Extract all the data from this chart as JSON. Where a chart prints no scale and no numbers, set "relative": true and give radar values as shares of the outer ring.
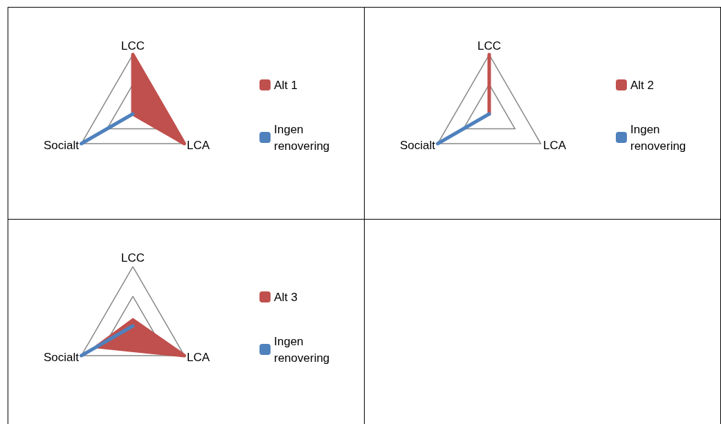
{
  "chart_data": [
    {
      "type": "radar",
      "relative": true,
      "grid": true,
      "legend": "right",
      "categories": [
        "LCC",
        "LCA",
        "Socialt"
      ],
      "series": [
        {
          "name": "Alt 1",
          "color": "#c0504d",
          "values": [
            1,
            1,
            0
          ]
        },
        {
          "name": "Ingen renovering",
          "color": "#4f81bd",
          "values": [
            0,
            0,
            1
          ]
        }
      ]
    },
    {
      "type": "radar",
      "relative": true,
      "grid": true,
      "legend": "right",
      "categories": [
        "LCC",
        "LCA",
        "Socialt"
      ],
      "series": [
        {
          "name": "Alt 2",
          "color": "#c0504d",
          "values": [
            1,
            0,
            0
          ]
        },
        {
          "name": "Ingen renovering",
          "color": "#4f81bd",
          "values": [
            0,
            0,
            1
          ]
        }
      ]
    },
    {
      "type": "radar",
      "relative": true,
      "grid": true,
      "legend": "right",
      "categories": [
        "LCC",
        "LCA",
        "Socialt"
      ],
      "series": [
        {
          "name": "Alt 3",
          "color": "#c0504d",
          "values": [
            0.1,
            1,
            0.7
          ]
        },
        {
          "name": "Ingen renovering",
          "color": "#4f81bd",
          "values": [
            0,
            0,
            1
          ]
        }
      ]
    }
  ]
}
